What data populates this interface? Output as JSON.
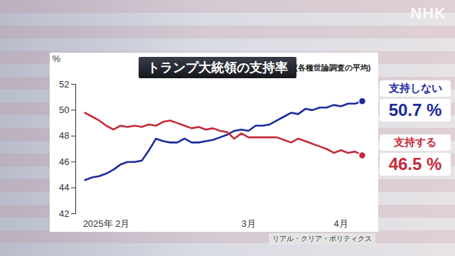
{
  "chart_data": {
    "type": "line",
    "title": "トランプ大統領の支持率",
    "subtitle": "(各種世論調査の平均)",
    "y_label": "%",
    "source": "リアル・クリア・ポリティクス",
    "logo": "NHK",
    "categories": [
      null,
      null,
      null,
      "2025年 2月",
      null,
      null,
      null,
      null,
      null,
      null,
      null,
      null,
      null,
      null,
      null,
      null,
      null,
      null,
      null,
      null,
      null,
      null,
      null,
      "3月",
      null,
      null,
      null,
      null,
      null,
      null,
      null,
      null,
      null,
      null,
      null,
      null,
      "4月",
      null,
      null,
      null
    ],
    "series": [
      {
        "name": "支持しない",
        "color": "#1c2a9e",
        "values": [
          44.6,
          44.8,
          44.9,
          45.1,
          45.4,
          45.8,
          46.0,
          46.0,
          46.1,
          46.9,
          47.8,
          47.6,
          47.5,
          47.5,
          47.8,
          47.5,
          47.5,
          47.6,
          47.7,
          47.9,
          48.1,
          48.4,
          48.5,
          48.4,
          48.8,
          48.8,
          48.9,
          49.2,
          49.5,
          49.8,
          49.7,
          50.1,
          50.0,
          50.2,
          50.2,
          50.4,
          50.3,
          50.5,
          50.5,
          50.7
        ],
        "value_labels": [
          null,
          null,
          null,
          null,
          null,
          null,
          null,
          null,
          null,
          null,
          null,
          null,
          null,
          null,
          null,
          null,
          null,
          null,
          null,
          null,
          null,
          null,
          null,
          null,
          null,
          null,
          null,
          null,
          null,
          null,
          null,
          null,
          null,
          null,
          null,
          null,
          null,
          null,
          null,
          "50.7 %"
        ]
      },
      {
        "name": "支持する",
        "color": "#c62a3a",
        "values": [
          49.8,
          49.5,
          49.2,
          48.8,
          48.5,
          48.8,
          48.7,
          48.8,
          48.7,
          48.9,
          48.8,
          49.1,
          49.2,
          49.0,
          48.8,
          48.6,
          48.7,
          48.5,
          48.6,
          48.4,
          48.3,
          47.8,
          48.2,
          47.9,
          47.9,
          47.9,
          47.9,
          47.9,
          47.7,
          47.5,
          47.8,
          47.6,
          47.4,
          47.2,
          47.0,
          46.7,
          46.9,
          46.7,
          46.8,
          46.5
        ],
        "value_labels": [
          null,
          null,
          null,
          null,
          null,
          null,
          null,
          null,
          null,
          null,
          null,
          null,
          null,
          null,
          null,
          null,
          null,
          null,
          null,
          null,
          null,
          null,
          null,
          null,
          null,
          null,
          null,
          null,
          null,
          null,
          null,
          null,
          null,
          null,
          null,
          null,
          null,
          null,
          null,
          "46.5 %"
        ]
      }
    ],
    "ylim": [
      42,
      52
    ],
    "yticks": [
      42,
      44,
      46,
      48,
      50,
      52
    ],
    "grid": false,
    "legend": false
  }
}
